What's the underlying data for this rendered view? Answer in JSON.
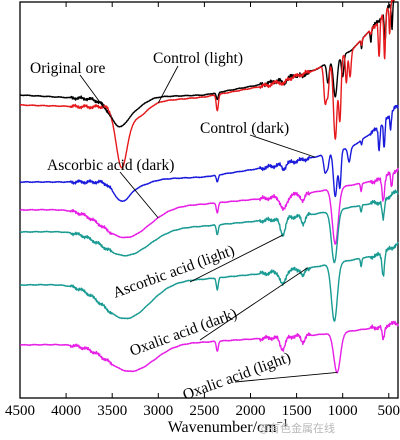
{
  "chart_data": {
    "type": "line",
    "xlabel": "Wavenumber/cm",
    "xlabel_superscript": "−1",
    "xlim": [
      4500,
      400
    ],
    "x_ticks": [
      4500,
      4000,
      3500,
      3000,
      2500,
      2000,
      1500,
      1000,
      500
    ],
    "x_tick_labels": [
      "4500",
      "4000",
      "3500",
      "3000",
      "2500",
      "2000",
      "1500",
      "1000",
      "500"
    ],
    "y_axis_ticks": false,
    "colors": {
      "black": "#000000",
      "red": "#e6191c",
      "blue": "#1a1adc",
      "magenta": "#e61ee6",
      "teal": "#199a92"
    },
    "series": [
      {
        "name": "Original ore",
        "color": "#000000",
        "baseline": 95,
        "peaks": [
          [
            3600,
            2,
            100
          ],
          [
            3430,
            25,
            130
          ],
          [
            3260,
            10,
            160
          ],
          [
            2360,
            7,
            15
          ],
          [
            1640,
            5,
            30
          ],
          [
            1430,
            4,
            25
          ],
          [
            1160,
            20,
            18
          ],
          [
            1080,
            38,
            28
          ],
          [
            1000,
            22,
            18
          ],
          [
            795,
            9,
            8
          ],
          [
            695,
            11,
            10
          ],
          [
            540,
            30,
            12
          ],
          [
            465,
            26,
            10
          ]
        ],
        "drift": [
          [
            4500,
            0
          ],
          [
            3700,
            4
          ],
          [
            2500,
            0
          ],
          [
            1800,
            -12
          ],
          [
            1300,
            -25
          ],
          [
            900,
            -45
          ],
          [
            600,
            -75
          ],
          [
            420,
            -100
          ]
        ],
        "label_text": "Original ore",
        "label_anchor": [
          3450,
          26
        ]
      },
      {
        "name": "Control (light)",
        "color": "#e6191c",
        "baseline": 105,
        "peaks": [
          [
            3400,
            56,
            85
          ],
          [
            3250,
            15,
            170
          ],
          [
            2360,
            16,
            16
          ],
          [
            1640,
            4,
            30
          ],
          [
            1190,
            38,
            20
          ],
          [
            1160,
            30,
            18
          ],
          [
            1080,
            80,
            28
          ],
          [
            1030,
            62,
            18
          ],
          [
            960,
            30,
            14
          ],
          [
            920,
            26,
            16
          ],
          [
            795,
            6,
            8
          ],
          [
            695,
            6,
            10
          ],
          [
            605,
            38,
            12
          ],
          [
            545,
            45,
            12
          ],
          [
            490,
            30,
            10
          ]
        ],
        "drift": [
          [
            4500,
            0
          ],
          [
            3700,
            2
          ],
          [
            2500,
            -8
          ],
          [
            1800,
            -20
          ],
          [
            1300,
            -35
          ],
          [
            900,
            -55
          ],
          [
            600,
            -85
          ],
          [
            420,
            -110
          ]
        ],
        "label_text": "Control (light)",
        "label_anchor": [
          3000,
          12
        ]
      },
      {
        "name": "Control (dark)",
        "color": "#1a1adc",
        "baseline": 182,
        "peaks": [
          [
            3400,
            18,
            120
          ],
          [
            3230,
            6,
            180
          ],
          [
            2360,
            7,
            15
          ],
          [
            1640,
            5,
            30
          ],
          [
            1190,
            18,
            22
          ],
          [
            1160,
            12,
            18
          ],
          [
            1080,
            45,
            28
          ],
          [
            1030,
            36,
            18
          ],
          [
            930,
            14,
            20
          ],
          [
            795,
            5,
            8
          ],
          [
            605,
            22,
            12
          ],
          [
            550,
            28,
            12
          ],
          [
            480,
            15,
            10
          ]
        ],
        "drift": [
          [
            4500,
            0
          ],
          [
            3700,
            0
          ],
          [
            2500,
            -5
          ],
          [
            1800,
            -15
          ],
          [
            1300,
            -25
          ],
          [
            900,
            -35
          ],
          [
            600,
            -55
          ],
          [
            420,
            -75
          ]
        ],
        "label_text": "Control (dark)",
        "label_anchor": [
          1300,
          6
        ]
      },
      {
        "name": "Ascorbic acid (dark)",
        "color": "#e61ee6",
        "baseline": 210,
        "peaks": [
          [
            3350,
            30,
            360
          ],
          [
            2360,
            10,
            15
          ],
          [
            1640,
            14,
            45
          ],
          [
            1430,
            8,
            28
          ],
          [
            1080,
            56,
            45
          ],
          [
            800,
            8,
            10
          ],
          [
            560,
            22,
            18
          ],
          [
            470,
            15,
            12
          ]
        ],
        "drift": [
          [
            4500,
            0
          ],
          [
            3700,
            -1
          ],
          [
            2500,
            -6
          ],
          [
            1800,
            -12
          ],
          [
            1300,
            -18
          ],
          [
            900,
            -25
          ],
          [
            600,
            -30
          ],
          [
            420,
            -40
          ]
        ],
        "label_text": "Ascorbic acid (dark)",
        "label_anchor": [
          3000,
          18
        ]
      },
      {
        "name": "Ascorbic acid (light)",
        "color": "#199a92",
        "baseline": 232,
        "peaks": [
          [
            3350,
            26,
            360
          ],
          [
            2360,
            10,
            15
          ],
          [
            1650,
            16,
            40
          ],
          [
            1430,
            8,
            28
          ],
          [
            1090,
            52,
            45
          ],
          [
            800,
            7,
            10
          ],
          [
            560,
            20,
            18
          ]
        ],
        "drift": [
          [
            4500,
            0
          ],
          [
            3700,
            -1
          ],
          [
            2500,
            -6
          ],
          [
            1800,
            -12
          ],
          [
            1300,
            -18
          ],
          [
            900,
            -25
          ],
          [
            600,
            -30
          ],
          [
            420,
            -40
          ]
        ],
        "label_text": "Ascorbic acid (light)",
        "label_anchor": [
          1650,
          10
        ]
      },
      {
        "name": "Oxalic acid (dark)",
        "color": "#199a92",
        "baseline": 285,
        "peaks": [
          [
            3350,
            36,
            360
          ],
          [
            2360,
            12,
            15
          ],
          [
            1650,
            14,
            40
          ],
          [
            1430,
            8,
            28
          ],
          [
            1090,
            58,
            45
          ],
          [
            800,
            8,
            10
          ],
          [
            560,
            22,
            18
          ]
        ],
        "drift": [
          [
            4500,
            0
          ],
          [
            3700,
            -1
          ],
          [
            2500,
            -6
          ],
          [
            1800,
            -12
          ],
          [
            1300,
            -18
          ],
          [
            900,
            -25
          ],
          [
            600,
            -30
          ],
          [
            420,
            -40
          ]
        ],
        "label_text": "Oxalic acid (dark)",
        "label_anchor": [
          1380,
          12
        ]
      },
      {
        "name": "Oxalic acid (light)",
        "color": "#e61ee6",
        "baseline": 345,
        "peaks": [
          [
            3300,
            28,
            360
          ],
          [
            2360,
            10,
            15
          ],
          [
            1650,
            12,
            40
          ],
          [
            1430,
            6,
            28
          ],
          [
            1060,
            40,
            50
          ],
          [
            560,
            14,
            18
          ]
        ],
        "drift": [
          [
            4500,
            0
          ],
          [
            3700,
            -1
          ],
          [
            2500,
            -3
          ],
          [
            1800,
            -7
          ],
          [
            1300,
            -10
          ],
          [
            900,
            -14
          ],
          [
            600,
            -18
          ],
          [
            420,
            -22
          ]
        ],
        "label_text": "Oxalic acid (light)",
        "label_anchor": [
          1060,
          32
        ]
      }
    ]
  },
  "watermark": "@有色金属在线"
}
